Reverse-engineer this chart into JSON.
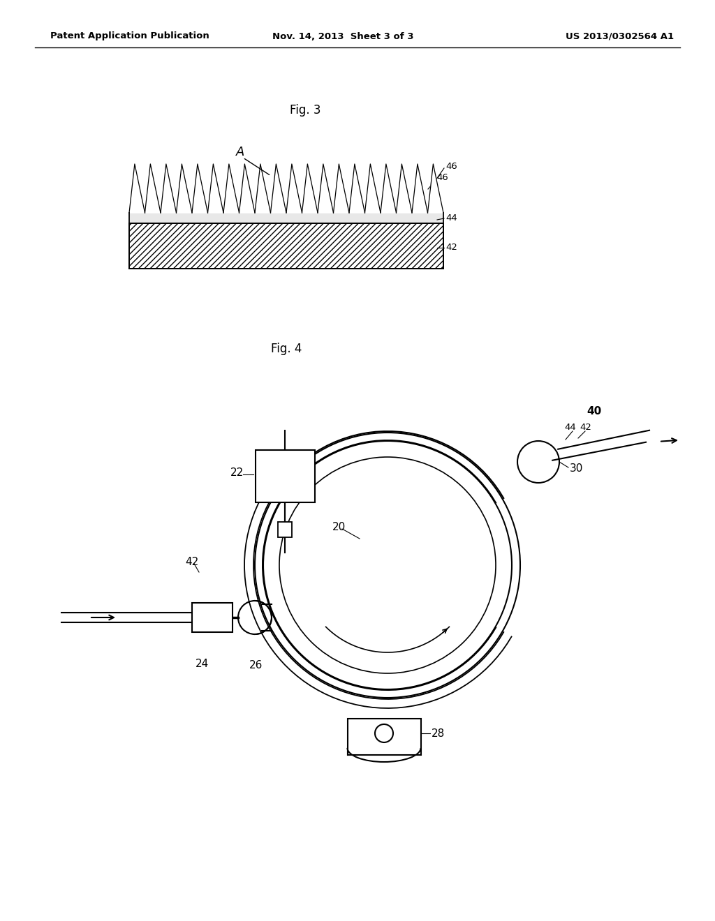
{
  "background_color": "#ffffff",
  "header_left": "Patent Application Publication",
  "header_middle": "Nov. 14, 2013  Sheet 3 of 3",
  "header_right": "US 2013/0302564 A1",
  "fig3_label": "Fig. 3",
  "fig4_label": "Fig. 4",
  "text_color": "#000000",
  "line_color": "#000000"
}
